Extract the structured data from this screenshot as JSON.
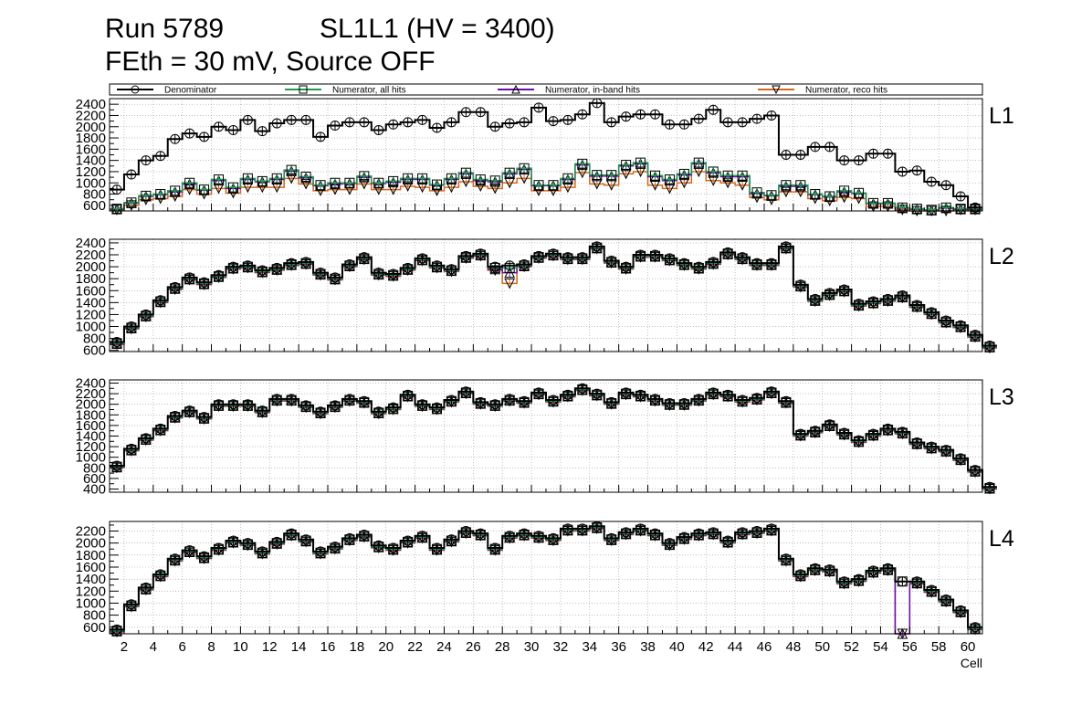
{
  "header": {
    "run": "Run 5789",
    "chamber": "SL1L1 (HV = 3400)",
    "conditions": "FEth = 30 mV, Source OFF"
  },
  "legend": {
    "entries": [
      "Denominator",
      "Numerator, all hits",
      "Numerator, in-band hits",
      "Numerator, reco hits"
    ]
  },
  "colors": {
    "denominator": "#000000",
    "all_hits": "#1f9a4f",
    "in_band_hits": "#6a0dad",
    "reco_hits": "#d2691e"
  },
  "chart_data": {
    "type": "histogram-step",
    "x_axis": {
      "label": "Cell",
      "range": [
        1,
        61
      ],
      "ticks": [
        2,
        4,
        6,
        8,
        10,
        12,
        14,
        16,
        18,
        20,
        22,
        24,
        26,
        28,
        30,
        32,
        34,
        36,
        38,
        40,
        42,
        44,
        46,
        48,
        50,
        52,
        54,
        56,
        58,
        60
      ]
    },
    "grid": true,
    "legend_placement": "top, horizontal",
    "series_names": [
      "Denominator",
      "Numerator, all hits",
      "Numerator, in-band hits",
      "Numerator, reco hits"
    ],
    "panels": [
      {
        "label": "L1",
        "ylim": [
          500,
          2500
        ],
        "yticks": [
          600,
          800,
          1000,
          1200,
          1400,
          1600,
          1800,
          2000,
          2200,
          2400
        ],
        "x_tick_labels_visible": false,
        "denominator": [
          880,
          1150,
          1400,
          1480,
          1780,
          1880,
          1820,
          2000,
          1940,
          2120,
          1920,
          2060,
          2120,
          2120,
          1820,
          2020,
          2080,
          2080,
          1940,
          2040,
          2080,
          2120,
          1980,
          2080,
          2260,
          2260,
          2000,
          2060,
          2080,
          2340,
          2100,
          2120,
          2220,
          2420,
          2080,
          2180,
          2220,
          2220,
          2040,
          2040,
          2140,
          2300,
          2080,
          2080,
          2140,
          2200,
          1500,
          1500,
          1640,
          1640,
          1400,
          1400,
          1520,
          1520,
          1200,
          1220,
          1020,
          960,
          760,
          560
        ],
        "all_hits": [
          540,
          650,
          770,
          800,
          860,
          1000,
          880,
          1060,
          920,
          1080,
          1030,
          1080,
          1230,
          1110,
          960,
          1000,
          1000,
          1120,
          1000,
          1030,
          1080,
          1080,
          970,
          1080,
          1180,
          1060,
          1040,
          1180,
          1260,
          960,
          960,
          1080,
          1340,
          1140,
          1140,
          1320,
          1360,
          1130,
          1060,
          1160,
          1360,
          1200,
          1130,
          1130,
          830,
          780,
          960,
          960,
          800,
          760,
          860,
          820,
          640,
          640,
          560,
          540,
          520,
          560,
          540,
          540
        ],
        "in_band_hits": [
          530,
          640,
          760,
          790,
          840,
          980,
          870,
          1040,
          900,
          1060,
          1020,
          1060,
          1210,
          1090,
          950,
          980,
          990,
          1100,
          990,
          1010,
          1060,
          1060,
          960,
          1060,
          1160,
          1040,
          1020,
          1160,
          1240,
          950,
          950,
          1060,
          1320,
          1120,
          1120,
          1300,
          1340,
          1110,
          1040,
          1140,
          1340,
          1180,
          1110,
          1110,
          810,
          770,
          940,
          940,
          790,
          750,
          840,
          810,
          630,
          630,
          550,
          530,
          510,
          550,
          530,
          530
        ],
        "reco_hits": [
          520,
          600,
          700,
          720,
          760,
          880,
          800,
          900,
          820,
          920,
          920,
          920,
          1080,
          980,
          860,
          880,
          880,
          980,
          880,
          880,
          940,
          920,
          860,
          920,
          1020,
          940,
          900,
          1000,
          1080,
          860,
          860,
          920,
          1180,
          980,
          960,
          1160,
          1200,
          960,
          900,
          1000,
          1200,
          1040,
          1000,
          960,
          740,
          700,
          840,
          840,
          720,
          680,
          740,
          720,
          580,
          580,
          520,
          500,
          480,
          500,
          520,
          520
        ]
      },
      {
        "label": "L2",
        "ylim": [
          580,
          2460
        ],
        "yticks": [
          600,
          800,
          1000,
          1200,
          1400,
          1600,
          1800,
          2000,
          2200,
          2400
        ],
        "x_tick_labels_visible": false,
        "denominator": [
          740,
          1000,
          1200,
          1440,
          1660,
          1820,
          1740,
          1860,
          2000,
          2020,
          1940,
          1980,
          2060,
          2080,
          1900,
          1820,
          2040,
          2160,
          1900,
          1880,
          1980,
          2140,
          2020,
          1960,
          2180,
          2220,
          2000,
          2020,
          2040,
          2180,
          2220,
          2160,
          2160,
          2340,
          2100,
          2000,
          2200,
          2200,
          2140,
          2060,
          2000,
          2080,
          2240,
          2160,
          2060,
          2060,
          2340,
          1700,
          1460,
          1560,
          1620,
          1380,
          1420,
          1460,
          1520,
          1360,
          1240,
          1100,
          1020,
          860,
          680
        ],
        "all_hits": [
          720,
          980,
          1180,
          1420,
          1640,
          1800,
          1720,
          1840,
          1980,
          2000,
          1920,
          1960,
          2040,
          2060,
          1880,
          1800,
          2020,
          2140,
          1880,
          1860,
          1960,
          2120,
          2000,
          1940,
          2160,
          2200,
          1980,
          1980,
          2020,
          2160,
          2200,
          2140,
          2140,
          2320,
          2080,
          1980,
          2180,
          2180,
          2120,
          2040,
          1980,
          2060,
          2220,
          2140,
          2040,
          2040,
          2320,
          1680,
          1440,
          1540,
          1600,
          1360,
          1400,
          1440,
          1500,
          1340,
          1220,
          1080,
          1000,
          840,
          660
        ],
        "in_band_hits": [
          710,
          970,
          1170,
          1410,
          1630,
          1790,
          1710,
          1830,
          1970,
          1990,
          1910,
          1950,
          2030,
          2050,
          1870,
          1790,
          2010,
          2130,
          1870,
          1850,
          1950,
          2110,
          1990,
          1930,
          2150,
          2190,
          1960,
          1900,
          2010,
          2150,
          2190,
          2130,
          2130,
          2310,
          2070,
          1970,
          2170,
          2170,
          2110,
          2030,
          1970,
          2050,
          2210,
          2130,
          2030,
          2030,
          2310,
          1670,
          1430,
          1530,
          1590,
          1350,
          1390,
          1430,
          1490,
          1330,
          1210,
          1070,
          990,
          830,
          650
        ],
        "reco_hits": [
          700,
          960,
          1160,
          1400,
          1620,
          1780,
          1700,
          1820,
          1960,
          1980,
          1900,
          1940,
          2020,
          2040,
          1860,
          1780,
          2000,
          2120,
          1860,
          1840,
          1940,
          2100,
          1980,
          1920,
          2140,
          2180,
          1940,
          1720,
          2000,
          2140,
          2180,
          2120,
          2120,
          2300,
          2060,
          1960,
          2160,
          2160,
          2100,
          2020,
          1960,
          2040,
          2200,
          2120,
          2020,
          2020,
          2300,
          1660,
          1420,
          1520,
          1580,
          1340,
          1380,
          1420,
          1480,
          1320,
          1200,
          1060,
          980,
          820,
          640
        ]
      },
      {
        "label": "L3",
        "ylim": [
          340,
          2460
        ],
        "yticks": [
          400,
          600,
          800,
          1000,
          1200,
          1400,
          1600,
          1800,
          2000,
          2200,
          2400
        ],
        "x_tick_labels_visible": false,
        "denominator": [
          840,
          1160,
          1360,
          1540,
          1780,
          1880,
          1760,
          2000,
          2000,
          2000,
          1880,
          2100,
          2100,
          1980,
          1860,
          1980,
          2100,
          2060,
          1860,
          1940,
          2180,
          2000,
          1940,
          2080,
          2240,
          2040,
          2000,
          2100,
          2060,
          2220,
          2080,
          2180,
          2300,
          2200,
          2040,
          2220,
          2180,
          2100,
          2020,
          2020,
          2100,
          2220,
          2180,
          2080,
          2120,
          2240,
          2060,
          1440,
          1500,
          1620,
          1460,
          1320,
          1440,
          1540,
          1480,
          1280,
          1200,
          1140,
          980,
          760,
          440
        ],
        "all_hits": [
          820,
          1140,
          1340,
          1520,
          1760,
          1860,
          1740,
          1980,
          1980,
          1980,
          1860,
          2080,
          2080,
          1960,
          1840,
          1960,
          2080,
          2040,
          1840,
          1920,
          2160,
          1980,
          1920,
          2060,
          2220,
          2020,
          1980,
          2080,
          2040,
          2200,
          2060,
          2160,
          2280,
          2180,
          2020,
          2200,
          2160,
          2080,
          2000,
          2000,
          2080,
          2200,
          2160,
          2060,
          2100,
          2220,
          2040,
          1420,
          1480,
          1600,
          1440,
          1300,
          1420,
          1520,
          1460,
          1260,
          1180,
          1120,
          960,
          740,
          420
        ],
        "in_band_hits": [
          810,
          1130,
          1330,
          1510,
          1750,
          1850,
          1730,
          1970,
          1970,
          1970,
          1850,
          2070,
          2070,
          1950,
          1830,
          1950,
          2070,
          2030,
          1830,
          1910,
          2150,
          1970,
          1910,
          2050,
          2210,
          2010,
          1970,
          2070,
          2030,
          2190,
          2050,
          2150,
          2270,
          2170,
          2010,
          2190,
          2150,
          2070,
          1990,
          1990,
          2070,
          2190,
          2150,
          2050,
          2090,
          2210,
          2030,
          1410,
          1470,
          1590,
          1430,
          1290,
          1410,
          1510,
          1450,
          1250,
          1170,
          1110,
          950,
          730,
          410
        ],
        "reco_hits": [
          800,
          1120,
          1320,
          1500,
          1740,
          1840,
          1720,
          1960,
          1960,
          1960,
          1840,
          2060,
          2060,
          1940,
          1820,
          1940,
          2060,
          2020,
          1820,
          1900,
          2140,
          1960,
          1900,
          2040,
          2200,
          2000,
          1960,
          2060,
          2020,
          2180,
          2040,
          2140,
          2260,
          2160,
          2000,
          2180,
          2140,
          2060,
          1980,
          1980,
          2060,
          2180,
          2140,
          2040,
          2080,
          2200,
          2020,
          1400,
          1460,
          1580,
          1420,
          1280,
          1400,
          1500,
          1440,
          1240,
          1160,
          1100,
          940,
          720,
          400
        ]
      },
      {
        "label": "L4",
        "ylim": [
          490,
          2360
        ],
        "yticks": [
          600,
          800,
          1000,
          1200,
          1400,
          1600,
          1800,
          2000,
          2200
        ],
        "x_tick_labels_visible": true,
        "denominator": [
          560,
          980,
          1260,
          1480,
          1740,
          1880,
          1780,
          1920,
          2040,
          2000,
          1860,
          2020,
          2160,
          2060,
          1860,
          1940,
          2080,
          2140,
          1960,
          1920,
          2040,
          2120,
          1920,
          2060,
          2200,
          2160,
          1920,
          2120,
          2160,
          2120,
          2080,
          2240,
          2240,
          2280,
          2080,
          2180,
          2240,
          2160,
          2000,
          2100,
          2160,
          2180,
          2040,
          2180,
          2200,
          2240,
          1740,
          1480,
          1580,
          1560,
          1360,
          1400,
          1540,
          1580,
          1360,
          1360,
          1220,
          1060,
          880,
          600
        ],
        "all_hits": [
          540,
          960,
          1240,
          1460,
          1720,
          1860,
          1760,
          1900,
          2020,
          1980,
          1840,
          2000,
          2140,
          2040,
          1840,
          1920,
          2060,
          2120,
          1940,
          1900,
          2020,
          2100,
          1900,
          2040,
          2180,
          2140,
          1900,
          2100,
          2140,
          2100,
          2060,
          2220,
          2220,
          2260,
          2060,
          2160,
          2220,
          2140,
          1980,
          2080,
          2140,
          2160,
          2020,
          2160,
          2180,
          2220,
          1720,
          1460,
          1560,
          1540,
          1340,
          1380,
          1520,
          1560,
          1360,
          1340,
          1200,
          1040,
          860,
          580
        ],
        "in_band_hits": [
          530,
          950,
          1230,
          1450,
          1710,
          1850,
          1750,
          1890,
          2010,
          1970,
          1830,
          1990,
          2130,
          2030,
          1830,
          1910,
          2050,
          2110,
          1930,
          1890,
          2010,
          2090,
          1890,
          2030,
          2170,
          2130,
          1890,
          2090,
          2130,
          2090,
          2050,
          2210,
          2210,
          2250,
          2050,
          2150,
          2210,
          2130,
          1970,
          2070,
          2130,
          2150,
          2010,
          2150,
          2170,
          2210,
          1710,
          1450,
          1550,
          1530,
          1330,
          1370,
          1510,
          1550,
          490,
          1330,
          1190,
          1030,
          850,
          570
        ],
        "reco_hits": [
          520,
          940,
          1220,
          1440,
          1700,
          1840,
          1740,
          1880,
          2000,
          1960,
          1820,
          1980,
          2120,
          2020,
          1820,
          1900,
          2040,
          2100,
          1920,
          1880,
          2000,
          2080,
          1880,
          2020,
          2160,
          2120,
          1880,
          2080,
          2120,
          2080,
          2040,
          2200,
          2200,
          2240,
          2040,
          2140,
          2200,
          2120,
          1960,
          2060,
          2120,
          2140,
          2000,
          2140,
          2160,
          2200,
          1700,
          1440,
          1540,
          1520,
          1320,
          1360,
          1500,
          1540,
          490,
          1320,
          1180,
          1020,
          840,
          560
        ]
      }
    ]
  }
}
